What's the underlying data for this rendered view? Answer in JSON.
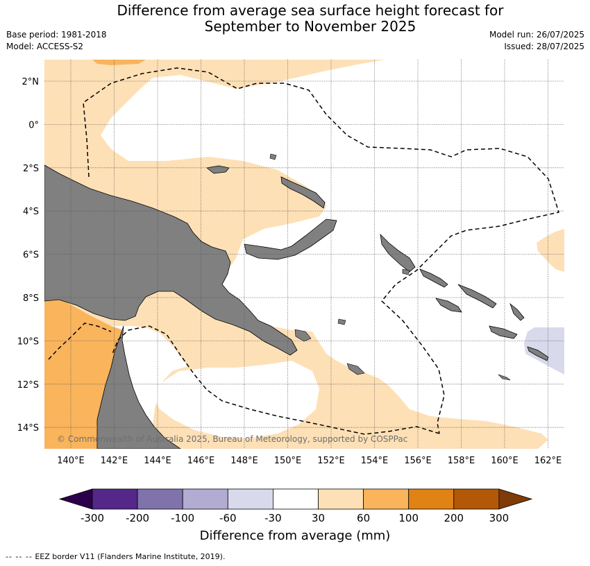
{
  "header": {
    "title_line1": "Difference from average sea surface height forecast for",
    "title_line2": "September to November 2025",
    "base_period": "Base period: 1981-2018",
    "model": "Model: ACCESS-S2",
    "model_run": "Model run: 26/07/2025",
    "issued": "Issued: 28/07/2025"
  },
  "map": {
    "lon_ticks": [
      "140°E",
      "142°E",
      "144°E",
      "146°E",
      "148°E",
      "150°E",
      "152°E",
      "154°E",
      "156°E",
      "158°E",
      "160°E",
      "162°E"
    ],
    "lat_ticks": [
      "2°N",
      "0°",
      "2°S",
      "4°S",
      "6°S",
      "8°S",
      "10°S",
      "12°S",
      "14°S"
    ],
    "copyright": "© Commonwealth of Australia 2025, Bureau of Meteorology, supported by COSPPac",
    "colors": {
      "land": "#808080",
      "anom_30_60": "#fee0b6",
      "anom_60_100": "#f9b45c",
      "anom_neg60_neg30": "#d8daeb",
      "ocean": "#ffffff"
    }
  },
  "colorbar": {
    "title": "Difference from average (mm)",
    "ticks": [
      "-300",
      "-200",
      "-100",
      "-60",
      "-30",
      "30",
      "60",
      "100",
      "200",
      "300"
    ],
    "colors": [
      "#2d004b",
      "#542788",
      "#8073ac",
      "#b2abd2",
      "#d8daeb",
      "#ffffff",
      "#fee0b6",
      "#f9b45c",
      "#e08214",
      "#b35806",
      "#7f3b08"
    ]
  },
  "legend": {
    "dashes": "-- -- --",
    "eez_text": "EEZ border V11 (Flanders Marine Institute, 2019)."
  }
}
